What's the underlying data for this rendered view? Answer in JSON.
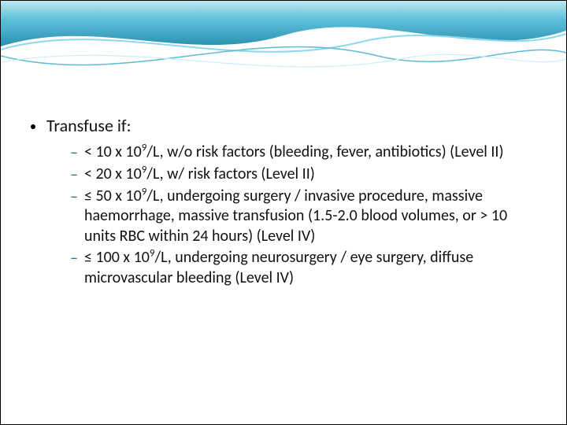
{
  "header": {
    "gradient_from": "#6fd1e8",
    "gradient_mid": "#3aa9c9",
    "gradient_to": "#1f6a88",
    "wave_line_color": "#8fd7ea",
    "wave_line_color2": "#5fb9d2",
    "background": "#ffffff"
  },
  "content": {
    "lvl1_text": "Transfuse if:",
    "lvl1_bullet_color": "#000000",
    "lvl2_dash_color": "#2a6f8f",
    "text_color": "#111111",
    "lvl1_fontsize": 22,
    "lvl2_fontsize": 20,
    "items": [
      {
        "html": "< 10 x 10<sup>9</sup>/L, w/o risk factors (bleeding, fever, antibiotics) (Level II)"
      },
      {
        "html": "< 20 x 10<sup>9</sup>/L, w/ risk factors (Level II)"
      },
      {
        "html": "≤ 50 x 10<sup>9</sup>/L, undergoing surgery / invasive procedure, massive haemorrhage, massive transfusion (1.5-2.0 blood volumes, or > 10 units RBC within 24 hours) (Level IV)"
      },
      {
        "html": "≤ 100 x 10<sup>9</sup>/L, undergoing neurosurgery / eye surgery, diffuse microvascular bleeding (Level IV)"
      }
    ]
  }
}
